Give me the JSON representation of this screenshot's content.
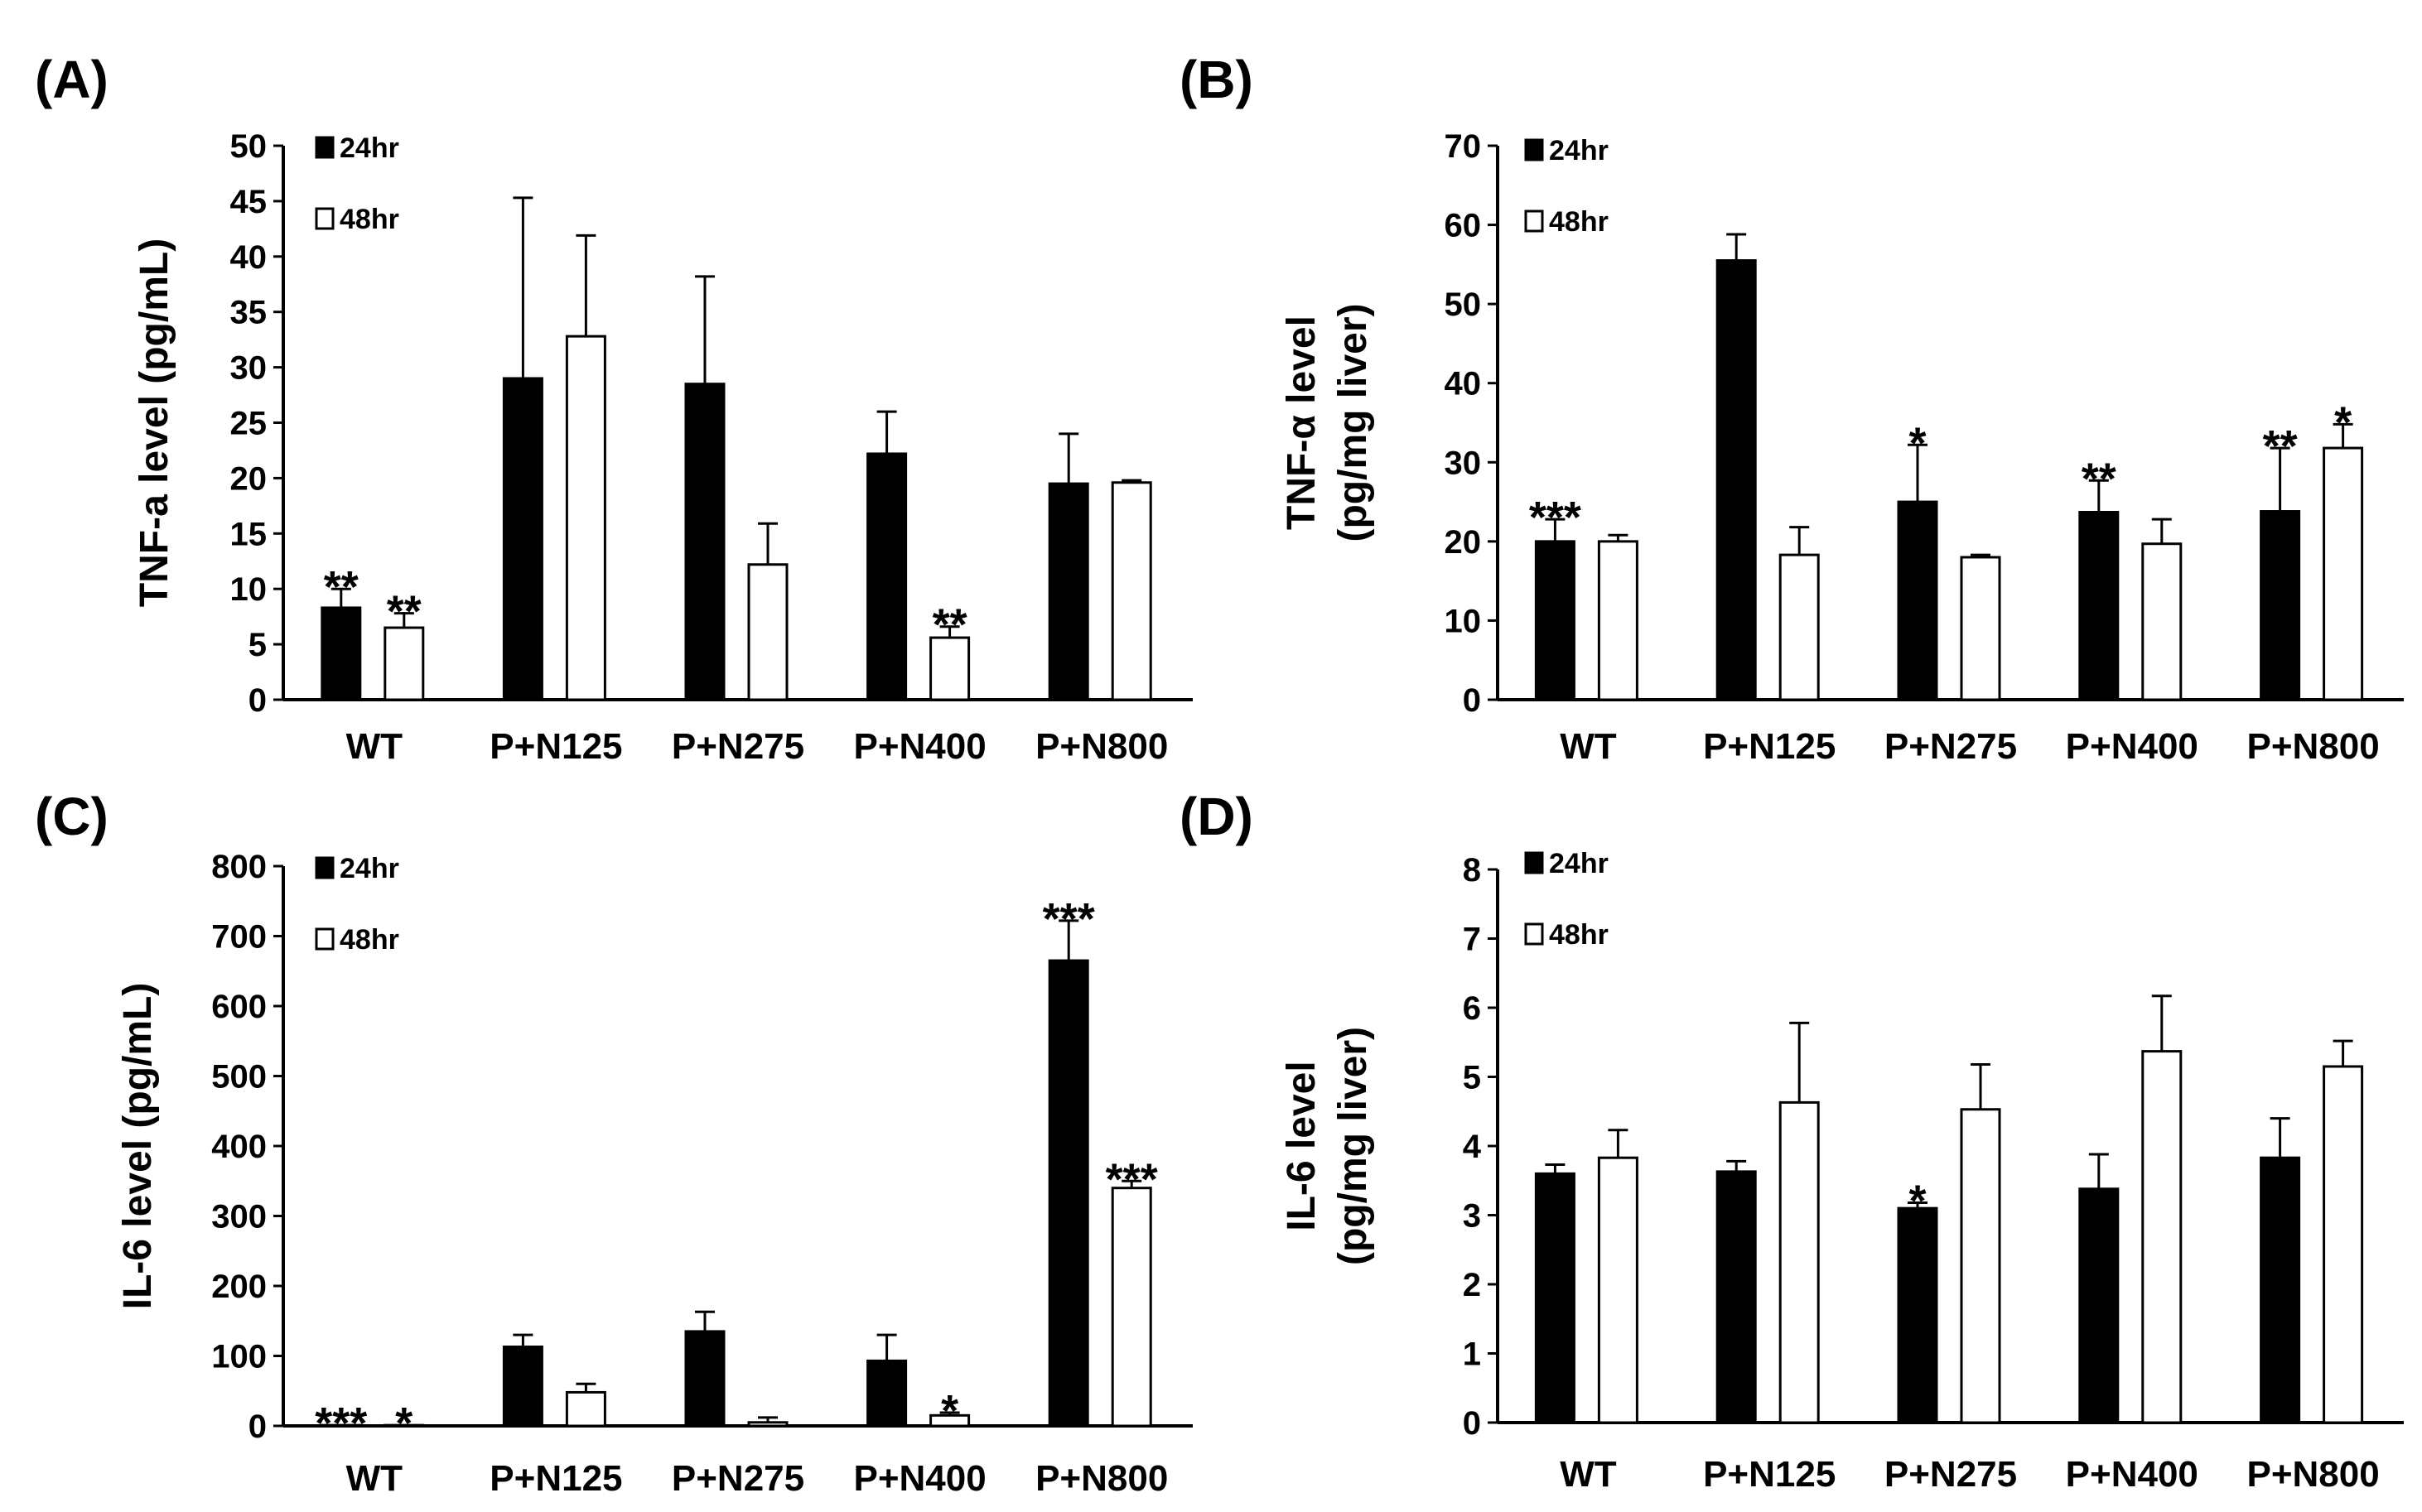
{
  "colors": {
    "series_24hr": "#000000",
    "series_48hr": "#ffffff",
    "outline": "#000000"
  },
  "chart_data": [
    {
      "panel": "(A)",
      "type": "bar",
      "ylabel": [
        "TNF-a level (pg/mL)"
      ],
      "ylim": [
        0,
        50
      ],
      "yticks": [
        0,
        5,
        10,
        15,
        20,
        25,
        30,
        35,
        40,
        45,
        50
      ],
      "categories": [
        "WT",
        "P+N125",
        "P+N275",
        "P+N400",
        "P+N800"
      ],
      "legend": [
        "24hr",
        "48hr"
      ],
      "legend_position": "top-left",
      "series": [
        {
          "name": "24hr",
          "values": [
            8.3,
            29,
            28.5,
            22.2,
            19.5
          ],
          "errors": [
            1.7,
            16.3,
            9.7,
            3.8,
            4.5
          ],
          "annotations": [
            "**",
            "",
            "",
            "",
            ""
          ]
        },
        {
          "name": "48hr",
          "values": [
            6.5,
            32.8,
            12.2,
            5.6,
            19.6
          ],
          "errors": [
            1.3,
            9.1,
            3.7,
            1.0,
            0.2
          ],
          "annotations": [
            "**",
            "",
            "",
            "**",
            ""
          ]
        }
      ]
    },
    {
      "panel": "(B)",
      "type": "bar",
      "ylabel": [
        "TNF-α level",
        "(pg/mg liver)"
      ],
      "ylim": [
        0,
        70
      ],
      "yticks": [
        0,
        10,
        20,
        30,
        40,
        50,
        60,
        70
      ],
      "categories": [
        "WT",
        "P+N125",
        "P+N275",
        "P+N400",
        "P+N800"
      ],
      "legend": [
        "24hr",
        "48hr"
      ],
      "legend_position": "top-left",
      "series": [
        {
          "name": "24hr",
          "values": [
            20,
            55.5,
            25,
            23.7,
            23.8
          ],
          "errors": [
            2.8,
            3.3,
            7.2,
            4.0,
            8.0
          ],
          "annotations": [
            "***",
            "",
            "*",
            "**",
            "**"
          ]
        },
        {
          "name": "48hr",
          "values": [
            20,
            18.3,
            18,
            19.7,
            31.8
          ],
          "errors": [
            0.8,
            3.5,
            0.3,
            3.1,
            3.0
          ],
          "annotations": [
            "",
            "",
            "",
            "",
            "*"
          ]
        }
      ]
    },
    {
      "panel": "(C)",
      "type": "bar",
      "ylabel": [
        "IL-6 level (pg/mL)"
      ],
      "ylim": [
        0,
        800
      ],
      "yticks": [
        0,
        100,
        200,
        300,
        400,
        500,
        600,
        700,
        800
      ],
      "categories": [
        "WT",
        "P+N125",
        "P+N275",
        "P+N400",
        "P+N800"
      ],
      "legend": [
        "24hr",
        "48hr"
      ],
      "legend_position": "top-left",
      "series": [
        {
          "name": "24hr",
          "values": [
            1,
            113,
            135,
            93,
            665
          ],
          "errors": [
            0,
            17,
            28,
            37,
            57
          ],
          "annotations": [
            "***",
            "",
            "",
            "",
            "***"
          ]
        },
        {
          "name": "48hr",
          "values": [
            1,
            48,
            5,
            15,
            340
          ],
          "errors": [
            0,
            12,
            7,
            4,
            10
          ],
          "annotations": [
            "*",
            "",
            "",
            "*",
            "***"
          ]
        }
      ]
    },
    {
      "panel": "(D)",
      "type": "bar",
      "ylabel": [
        "IL-6 level",
        "(pg/mg liver)"
      ],
      "ylim": [
        0,
        8
      ],
      "yticks": [
        0,
        1,
        2,
        3,
        4,
        5,
        6,
        7,
        8
      ],
      "categories": [
        "WT",
        "P+N125",
        "P+N275",
        "P+N400",
        "P+N800"
      ],
      "legend": [
        "24hr",
        "48hr"
      ],
      "legend_position": "top-left",
      "series": [
        {
          "name": "24hr",
          "values": [
            3.6,
            3.63,
            3.1,
            3.38,
            3.83
          ],
          "errors": [
            0.13,
            0.15,
            0.08,
            0.5,
            0.57
          ],
          "annotations": [
            "",
            "",
            "*",
            "",
            ""
          ]
        },
        {
          "name": "48hr",
          "values": [
            3.83,
            4.63,
            4.53,
            5.37,
            5.15
          ],
          "errors": [
            0.4,
            1.15,
            0.65,
            0.8,
            0.37
          ],
          "annotations": [
            "",
            "",
            "",
            "",
            ""
          ]
        }
      ]
    }
  ]
}
